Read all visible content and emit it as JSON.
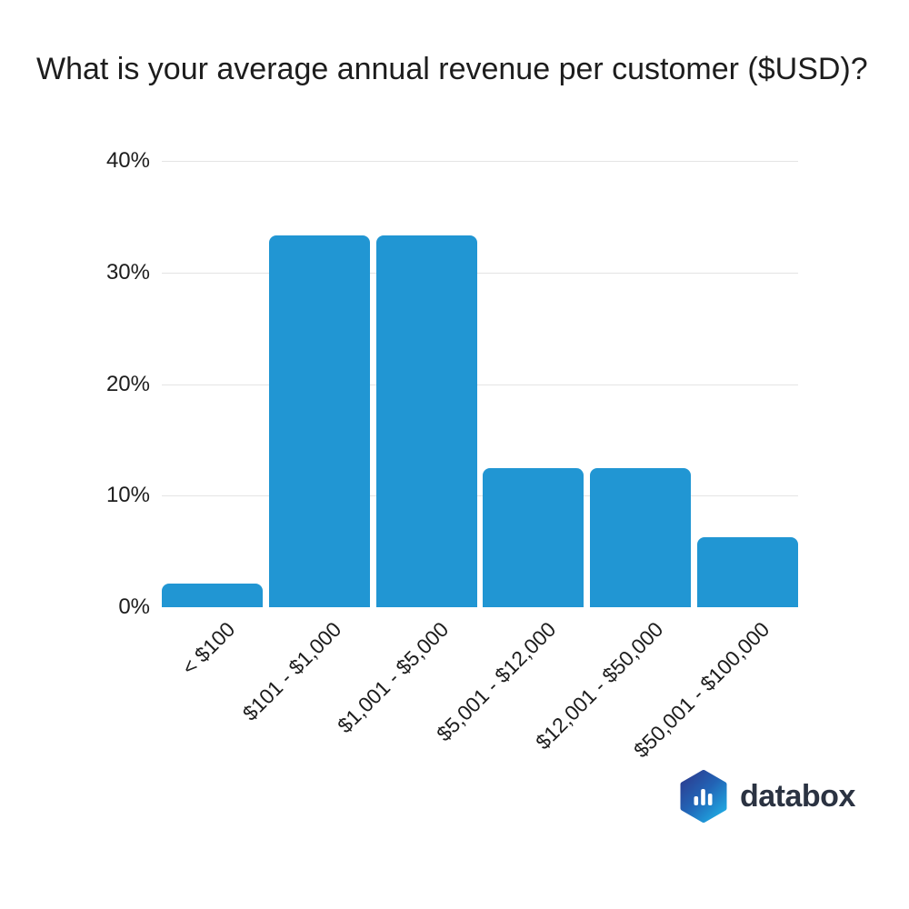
{
  "chart_data": {
    "type": "bar",
    "title": "What is your average annual revenue per customer ($USD)?",
    "categories": [
      "< $100",
      "$101 - $1,000",
      "$1,001 - $5,000",
      "$5,001 - $12,000",
      "$12,001 - $50,000",
      "$50,001 - $100,000"
    ],
    "values": [
      2.1,
      33.3,
      33.3,
      12.5,
      12.5,
      6.3
    ],
    "xlabel": "",
    "ylabel": "",
    "ylim": [
      0,
      40
    ],
    "yticks": [
      0,
      10,
      20,
      30,
      40
    ],
    "ytick_labels": [
      "0%",
      "10%",
      "20%",
      "30%",
      "40%"
    ],
    "grid": true,
    "legend": false,
    "x_labels_rotation_deg": -45,
    "bar_color": "#2196d3",
    "gridline_color": "#e4e4e4",
    "label_color": "#1d1d1d"
  },
  "branding": {
    "logo_text": "databox",
    "icon": "databox-hexagon-bar-chart-icon",
    "wordmark_color": "#2b3342",
    "hexagon_gradient_start": "#2d3a8d",
    "hexagon_gradient_end": "#1fa9e2"
  }
}
